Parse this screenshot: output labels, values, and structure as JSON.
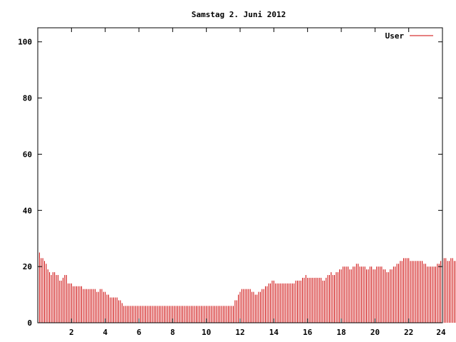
{
  "chart_data": {
    "type": "bar",
    "title": "Samstag 2. Juni 2012",
    "xlabel": "",
    "ylabel": "",
    "xlim": [
      0,
      24
    ],
    "ylim": [
      0,
      105
    ],
    "x_ticks": [
      2,
      4,
      6,
      8,
      10,
      12,
      14,
      16,
      18,
      20,
      22,
      24
    ],
    "y_ticks": [
      0,
      20,
      40,
      60,
      80,
      100
    ],
    "x_tick_labels": [
      "2",
      "4",
      "6",
      "8",
      "10",
      "12",
      "14",
      "16",
      "18",
      "20",
      "22",
      "24"
    ],
    "y_tick_labels": [
      "0",
      "20",
      "40",
      "60",
      "80",
      "100"
    ],
    "grid": false,
    "legend_position": "top-right",
    "colors": {
      "series": "#cc0000",
      "axis": "#000000"
    },
    "series": [
      {
        "name": "User",
        "x_step_hours": 0.1,
        "values": [
          25,
          23,
          23,
          22,
          21,
          19,
          18,
          17,
          18,
          18,
          17,
          17,
          15,
          15,
          16,
          17,
          17,
          14,
          14,
          14,
          13,
          13,
          13,
          13,
          13,
          13,
          12,
          12,
          12,
          12,
          12,
          12,
          12,
          12,
          11,
          11,
          12,
          12,
          11,
          11,
          10,
          10,
          9,
          9,
          9,
          9,
          9,
          8,
          8,
          7,
          6,
          6,
          6,
          6,
          6,
          6,
          6,
          6,
          6,
          6,
          6,
          6,
          6,
          6,
          6,
          6,
          6,
          6,
          6,
          6,
          6,
          6,
          6,
          6,
          6,
          6,
          6,
          6,
          6,
          6,
          6,
          6,
          6,
          6,
          6,
          6,
          6,
          6,
          6,
          6,
          6,
          6,
          6,
          6,
          6,
          6,
          6,
          6,
          6,
          6,
          6,
          6,
          6,
          6,
          6,
          6,
          6,
          6,
          6,
          6,
          6,
          6,
          6,
          6,
          6,
          6,
          8,
          8,
          10,
          11,
          12,
          12,
          12,
          12,
          12,
          12,
          11,
          11,
          10,
          10,
          11,
          11,
          12,
          12,
          13,
          13,
          14,
          14,
          15,
          15,
          14,
          14,
          14,
          14,
          14,
          14,
          14,
          14,
          14,
          14,
          14,
          14,
          15,
          15,
          15,
          15,
          16,
          16,
          17,
          16,
          16,
          16,
          16,
          16,
          16,
          16,
          16,
          16,
          15,
          15,
          16,
          17,
          17,
          18,
          17,
          17,
          18,
          18,
          19,
          19,
          20,
          20,
          20,
          20,
          19,
          19,
          20,
          20,
          21,
          21,
          20,
          20,
          20,
          20,
          19,
          19,
          20,
          20,
          19,
          19,
          20,
          20,
          20,
          20,
          19,
          19,
          18,
          18,
          19,
          19,
          20,
          20,
          21,
          21,
          22,
          22,
          23,
          23,
          23,
          23,
          22,
          22,
          22,
          22,
          22,
          22,
          22,
          22,
          21,
          21,
          20,
          20,
          20,
          20,
          20,
          20,
          21,
          21,
          22,
          22,
          23,
          23,
          22,
          22,
          23,
          23,
          22,
          22,
          22,
          22,
          22,
          22,
          21,
          21,
          20,
          20,
          20,
          20,
          20,
          20,
          20,
          20,
          19,
          19,
          20,
          20,
          21,
          21,
          22,
          22,
          22,
          22,
          21,
          21,
          22,
          22,
          22,
          22,
          21,
          21,
          20,
          20,
          20,
          20,
          18,
          18,
          17,
          17,
          16,
          16,
          15,
          15,
          16,
          16,
          15,
          15,
          14,
          14,
          13,
          13,
          12,
          12,
          12,
          12,
          13,
          13,
          14,
          14,
          13,
          13,
          13,
          13,
          14,
          14,
          13,
          13,
          14,
          14,
          15,
          15,
          16,
          16,
          15,
          15,
          15,
          15,
          15,
          15,
          16,
          16,
          15,
          15,
          16,
          16,
          17,
          17,
          18,
          18,
          19,
          19,
          21,
          21,
          22,
          22,
          21,
          21,
          22,
          22,
          22,
          22,
          21,
          21,
          22,
          22,
          22,
          22,
          23,
          23,
          24,
          24,
          23,
          22,
          20,
          19,
          18
        ]
      }
    ]
  }
}
